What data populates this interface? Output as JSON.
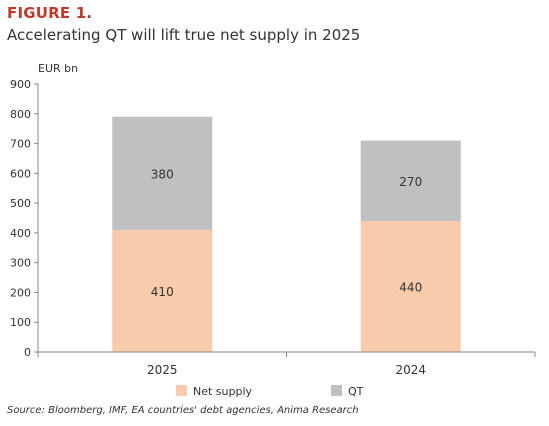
{
  "figure": {
    "label": "FIGURE 1.",
    "title": "Accelerating QT will lift true net supply in 2025",
    "source": "Source: Bloomberg, IMF, EA countries' debt agencies, Anima Research"
  },
  "chart_data": {
    "type": "bar",
    "stacked": true,
    "ylabel": "EUR bn",
    "ylim": [
      0,
      900
    ],
    "yticks": [
      0,
      100,
      200,
      300,
      400,
      500,
      600,
      700,
      800,
      900
    ],
    "categories": [
      "2025",
      "2024"
    ],
    "series": [
      {
        "name": "Net supply",
        "values": [
          410,
          440
        ],
        "color": "#f8cbad"
      },
      {
        "name": "QT",
        "values": [
          380,
          270
        ],
        "color": "#bfc0c2"
      }
    ],
    "grid": false,
    "legend_position": "bottom"
  }
}
